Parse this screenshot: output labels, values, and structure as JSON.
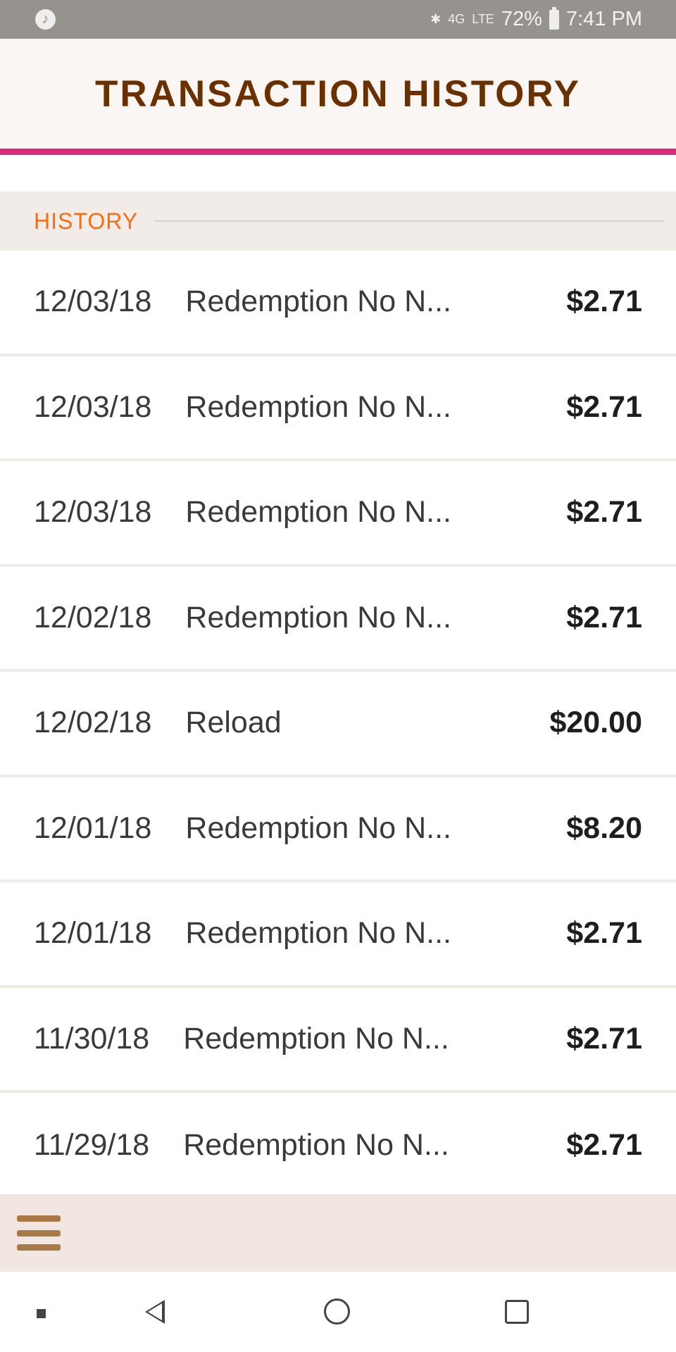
{
  "status_bar": {
    "battery": "72%",
    "time": "7:41 PM",
    "network": "4G",
    "signal": "LTE"
  },
  "header": {
    "title": "TRANSACTION HISTORY",
    "accent_color": "#dd2a7b",
    "title_color": "#6b3000"
  },
  "section": {
    "label": "HISTORY",
    "label_color": "#ff6a0e"
  },
  "transactions": [
    {
      "date": "12/03/18",
      "description": "Redemption No N...",
      "amount": "$2.71"
    },
    {
      "date": "12/03/18",
      "description": "Redemption No N...",
      "amount": "$2.71"
    },
    {
      "date": "12/03/18",
      "description": "Redemption No N...",
      "amount": "$2.71"
    },
    {
      "date": "12/02/18",
      "description": "Redemption No N...",
      "amount": "$2.71"
    },
    {
      "date": "12/02/18",
      "description": "Reload",
      "amount": "$20.00"
    },
    {
      "date": "12/01/18",
      "description": "Redemption No N...",
      "amount": "$8.20"
    },
    {
      "date": "12/01/18",
      "description": "Redemption No N...",
      "amount": "$2.71"
    },
    {
      "date": "11/30/18",
      "description": "Redemption No N...",
      "amount": "$2.71"
    },
    {
      "date": "11/29/18",
      "description": "Redemption No N...",
      "amount": "$2.71"
    }
  ],
  "bottom_bar": {
    "menu_icon": "hamburger-icon"
  },
  "nav_bar": {
    "icons": [
      "dot-icon",
      "back-icon",
      "home-icon",
      "recents-icon"
    ]
  }
}
